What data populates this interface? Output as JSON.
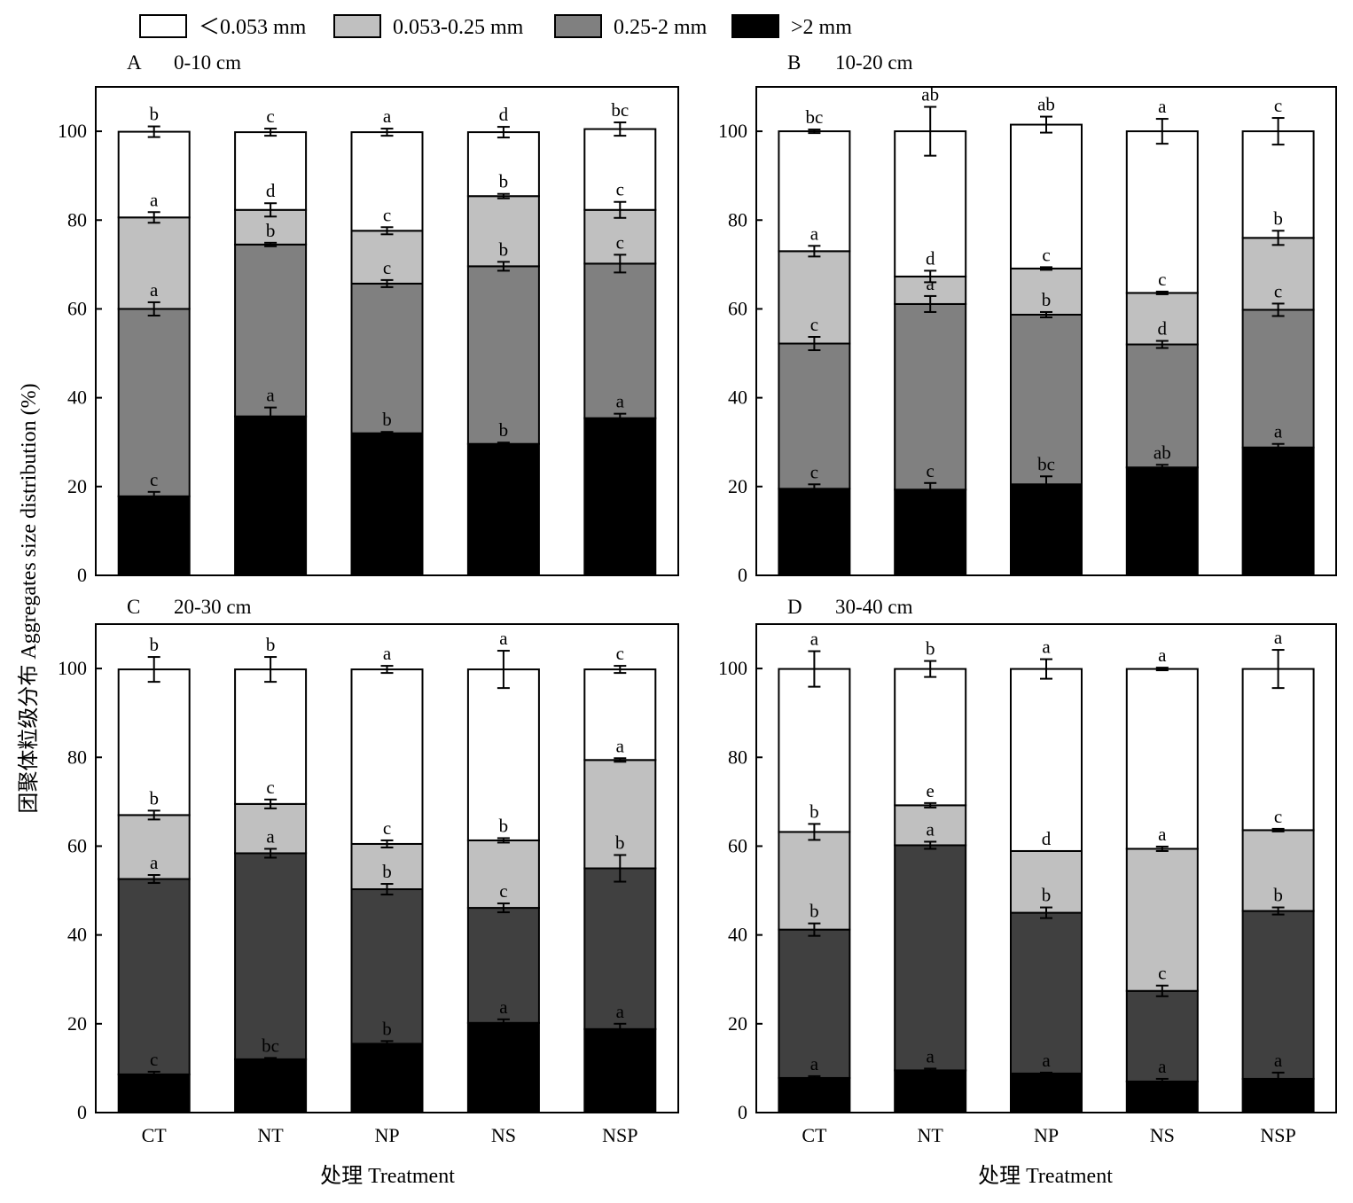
{
  "chart_data": {
    "type": "bar",
    "stacked": true,
    "ylabel": "团聚体粒级分布 Aggregates size distribution (%)",
    "xlabel": "处理 Treatment",
    "ylim": [
      0,
      110
    ],
    "yticks": [
      "0",
      "20",
      "40",
      "60",
      "80",
      "100"
    ],
    "categories": [
      "CT",
      "NT",
      "NP",
      "NS",
      "NSP"
    ],
    "legend": [
      {
        "name": "＜0.053 mm",
        "color": "#ffffff"
      },
      {
        "name": "0.053-0.25 mm",
        "color": "#c0c0c0"
      },
      {
        "name": "0.25-2 mm",
        "color": "#808080"
      },
      {
        "name": ">2 mm",
        "color": "#000000"
      }
    ],
    "panels": [
      {
        "letter": "A",
        "depth": "0-10 cm",
        "mid_color": "#808080",
        "bars": [
          {
            "s": [
              17.8,
              60.0,
              80.6,
              99.9
            ],
            "e": [
              1.0,
              1.5,
              1.2,
              1.2
            ],
            "l": [
              "c",
              "a",
              "a",
              "b"
            ]
          },
          {
            "s": [
              35.8,
              74.5,
              82.3,
              99.8
            ],
            "e": [
              2.0,
              0.4,
              1.5,
              0.8
            ],
            "l": [
              "a",
              "b",
              "d",
              "c"
            ]
          },
          {
            "s": [
              32.0,
              65.7,
              77.6,
              99.8
            ],
            "e": [
              0.3,
              0.8,
              0.8,
              0.8
            ],
            "l": [
              "b",
              "c",
              "c",
              "a"
            ]
          },
          {
            "s": [
              29.6,
              69.6,
              85.4,
              99.8
            ],
            "e": [
              0.3,
              1.0,
              0.5,
              1.2
            ],
            "l": [
              "b",
              "b",
              "b",
              "d"
            ]
          },
          {
            "s": [
              35.4,
              70.2,
              82.3,
              100.5
            ],
            "e": [
              1.0,
              2.0,
              1.8,
              1.5
            ],
            "l": [
              "a",
              "c",
              "c",
              "bc"
            ]
          }
        ]
      },
      {
        "letter": "B",
        "depth": "10-20 cm",
        "mid_color": "#808080",
        "bars": [
          {
            "s": [
              19.5,
              52.2,
              73.0,
              100.0
            ],
            "e": [
              1.0,
              1.5,
              1.2,
              0.4
            ],
            "l": [
              "c",
              "c",
              "a",
              "bc"
            ]
          },
          {
            "s": [
              19.3,
              61.1,
              67.3,
              100.0
            ],
            "e": [
              1.5,
              1.8,
              1.3,
              5.5
            ],
            "l": [
              "c",
              "a",
              "d",
              "ab"
            ]
          },
          {
            "s": [
              20.5,
              58.7,
              69.1,
              101.5
            ],
            "e": [
              1.8,
              0.6,
              0.3,
              1.8
            ],
            "l": [
              "bc",
              "b",
              "c",
              "ab"
            ]
          },
          {
            "s": [
              24.3,
              52.0,
              63.6,
              100.0
            ],
            "e": [
              0.6,
              0.8,
              0.3,
              2.8
            ],
            "l": [
              "ab",
              "d",
              "c",
              "a"
            ]
          },
          {
            "s": [
              28.8,
              59.8,
              76.0,
              100.0
            ],
            "e": [
              0.8,
              1.4,
              1.6,
              3.0
            ],
            "l": [
              "a",
              "c",
              "b",
              "c"
            ]
          }
        ]
      },
      {
        "letter": "C",
        "depth": "20-30 cm",
        "mid_color": "#404040",
        "bars": [
          {
            "s": [
              8.6,
              52.6,
              67.0,
              99.8
            ],
            "e": [
              0.6,
              0.9,
              1.0,
              2.8
            ],
            "l": [
              "c",
              "a",
              "b",
              "b"
            ]
          },
          {
            "s": [
              12.0,
              58.4,
              69.5,
              99.8
            ],
            "e": [
              0.3,
              1.0,
              1.0,
              2.8
            ],
            "l": [
              "bc",
              "a",
              "c",
              "b"
            ]
          },
          {
            "s": [
              15.5,
              50.3,
              60.5,
              99.8
            ],
            "e": [
              0.6,
              1.2,
              0.8,
              0.8
            ],
            "l": [
              "b",
              "b",
              "c",
              "a"
            ]
          },
          {
            "s": [
              20.2,
              46.1,
              61.3,
              99.8
            ],
            "e": [
              0.8,
              1.0,
              0.5,
              4.2
            ],
            "l": [
              "a",
              "c",
              "b",
              "a"
            ]
          },
          {
            "s": [
              18.8,
              55.0,
              79.4,
              99.8
            ],
            "e": [
              1.2,
              3.0,
              0.4,
              0.8
            ],
            "l": [
              "a",
              "b",
              "a",
              "c"
            ]
          }
        ]
      },
      {
        "letter": "D",
        "depth": "30-40 cm",
        "mid_color": "#404040",
        "bars": [
          {
            "s": [
              7.8,
              41.2,
              63.2,
              99.9
            ],
            "e": [
              0.4,
              1.4,
              1.8,
              4.0
            ],
            "l": [
              "a",
              "b",
              "b",
              "a"
            ]
          },
          {
            "s": [
              9.5,
              60.2,
              69.2,
              99.9
            ],
            "e": [
              0.4,
              0.8,
              0.5,
              1.8
            ],
            "l": [
              "a",
              "a",
              "e",
              "b"
            ]
          },
          {
            "s": [
              8.8,
              45.0,
              58.9,
              99.9
            ],
            "e": [
              0.2,
              1.2,
              0.0,
              2.2
            ],
            "l": [
              "a",
              "b",
              "d",
              "a"
            ]
          },
          {
            "s": [
              7.0,
              27.4,
              59.4,
              99.9
            ],
            "e": [
              0.6,
              1.2,
              0.5,
              0.3
            ],
            "l": [
              "a",
              "c",
              "a",
              "a"
            ]
          },
          {
            "s": [
              7.6,
              45.4,
              63.6,
              99.9
            ],
            "e": [
              1.4,
              0.8,
              0.3,
              4.3
            ],
            "l": [
              "a",
              "b",
              "c",
              "a"
            ]
          }
        ]
      }
    ]
  }
}
